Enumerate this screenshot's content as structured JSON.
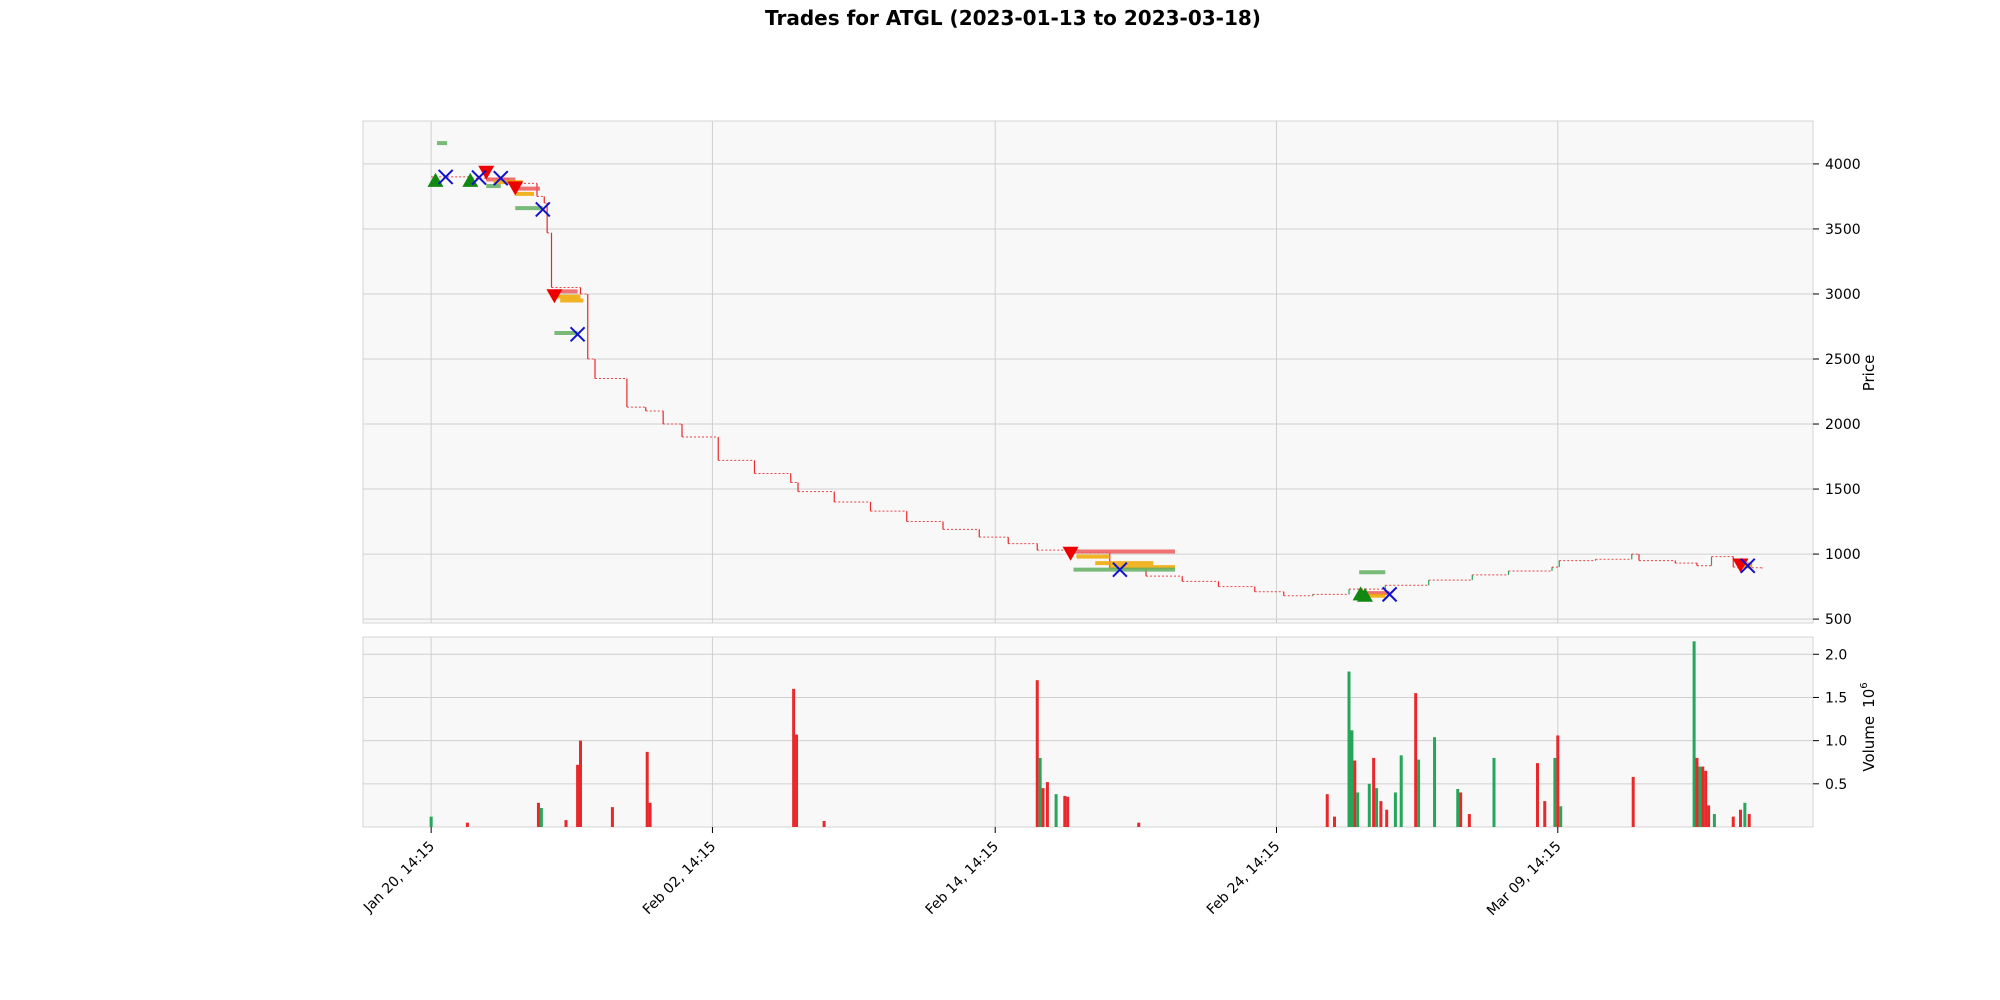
{
  "chart_data": {
    "type": "candlestick",
    "title": "Trades for ATGL (2023-01-13 to 2023-03-18)",
    "price_panel": {
      "ylabel": "Price",
      "y_ticks": [
        500,
        1000,
        1500,
        2000,
        2500,
        3000,
        3500,
        4000
      ],
      "ylim": [
        470,
        4330
      ],
      "grid": true,
      "background": "#f8f8f8"
    },
    "volume_panel": {
      "ylabel": "Volume",
      "exponent_label": "10",
      "exponent_power": "6",
      "y_ticks": [
        "0.5",
        "1.0",
        "1.5",
        "2.0"
      ],
      "y_tick_values": [
        0.5,
        1.0,
        1.5,
        2.0
      ],
      "ylim": [
        0,
        2.2
      ],
      "grid": true
    },
    "x_axis": {
      "tick_labels": [
        "Jan 20, 14:15",
        "Feb 02, 14:15",
        "Feb 14, 14:15",
        "Feb 24, 14:15",
        "Mar 09, 14:15"
      ],
      "tick_positions": [
        0.047,
        0.241,
        0.436,
        0.63,
        0.824
      ]
    },
    "colors": {
      "up": "#26a65b",
      "down": "#e8282b",
      "buy_marker": "#118811",
      "sell_marker": "#ee0000",
      "exit_marker": "#1111cc",
      "entry_bar": "#63b063",
      "tp_bar": "#ef5a5a",
      "sl_bar": "#f0a800"
    },
    "price_path": [
      [
        0.047,
        3900
      ],
      [
        0.075,
        3890
      ],
      [
        0.1,
        3850
      ],
      [
        0.12,
        3750
      ],
      [
        0.125,
        3700
      ],
      [
        0.127,
        3470
      ],
      [
        0.13,
        3050
      ],
      [
        0.15,
        3000
      ],
      [
        0.155,
        2500
      ],
      [
        0.16,
        2350
      ],
      [
        0.182,
        2130
      ],
      [
        0.195,
        2100
      ],
      [
        0.207,
        2000
      ],
      [
        0.22,
        1900
      ],
      [
        0.245,
        1720
      ],
      [
        0.27,
        1620
      ],
      [
        0.295,
        1550
      ],
      [
        0.3,
        1480
      ],
      [
        0.325,
        1400
      ],
      [
        0.35,
        1330
      ],
      [
        0.375,
        1250
      ],
      [
        0.4,
        1190
      ],
      [
        0.425,
        1130
      ],
      [
        0.445,
        1080
      ],
      [
        0.465,
        1030
      ],
      [
        0.49,
        1010
      ],
      [
        0.515,
        890
      ],
      [
        0.54,
        830
      ],
      [
        0.565,
        790
      ],
      [
        0.59,
        750
      ],
      [
        0.615,
        710
      ],
      [
        0.635,
        680
      ],
      [
        0.655,
        690
      ],
      [
        0.68,
        730
      ],
      [
        0.705,
        760
      ],
      [
        0.735,
        800
      ],
      [
        0.765,
        840
      ],
      [
        0.79,
        870
      ],
      [
        0.82,
        900
      ],
      [
        0.825,
        950
      ],
      [
        0.85,
        960
      ],
      [
        0.875,
        1000
      ],
      [
        0.88,
        950
      ],
      [
        0.905,
        930
      ],
      [
        0.92,
        910
      ],
      [
        0.93,
        980
      ],
      [
        0.945,
        900
      ],
      [
        0.955,
        895
      ],
      [
        0.965,
        890
      ]
    ],
    "buy_markers": [
      [
        0.05,
        3870
      ],
      [
        0.074,
        3870
      ],
      [
        0.688,
        690
      ],
      [
        0.691,
        680
      ]
    ],
    "sell_markers": [
      [
        0.085,
        3940
      ],
      [
        0.105,
        3820
      ],
      [
        0.132,
        2990
      ],
      [
        0.488,
        1010
      ],
      [
        0.95,
        920
      ]
    ],
    "exit_markers": [
      [
        0.057,
        3900
      ],
      [
        0.08,
        3895
      ],
      [
        0.095,
        3890
      ],
      [
        0.124,
        3650
      ],
      [
        0.148,
        2690
      ],
      [
        0.522,
        880
      ],
      [
        0.708,
        690
      ],
      [
        0.955,
        910
      ]
    ],
    "trade_bars": [
      {
        "kind": "entry",
        "x0": 0.051,
        "x1": 0.058,
        "y": 4160
      },
      {
        "kind": "entry",
        "x0": 0.085,
        "x1": 0.095,
        "y": 3830
      },
      {
        "kind": "tp",
        "x0": 0.085,
        "x1": 0.105,
        "y": 3880
      },
      {
        "kind": "sl",
        "x0": 0.09,
        "x1": 0.11,
        "y": 3860
      },
      {
        "kind": "tp",
        "x0": 0.105,
        "x1": 0.122,
        "y": 3810
      },
      {
        "kind": "sl",
        "x0": 0.105,
        "x1": 0.118,
        "y": 3770
      },
      {
        "kind": "entry",
        "x0": 0.105,
        "x1": 0.124,
        "y": 3660
      },
      {
        "kind": "tp",
        "x0": 0.132,
        "x1": 0.148,
        "y": 3020
      },
      {
        "kind": "sl",
        "x0": 0.134,
        "x1": 0.15,
        "y": 2980
      },
      {
        "kind": "sl",
        "x0": 0.136,
        "x1": 0.152,
        "y": 2950
      },
      {
        "kind": "entry",
        "x0": 0.132,
        "x1": 0.148,
        "y": 2700
      },
      {
        "kind": "tp",
        "x0": 0.49,
        "x1": 0.56,
        "y": 1020
      },
      {
        "kind": "sl",
        "x0": 0.492,
        "x1": 0.515,
        "y": 980
      },
      {
        "kind": "sl",
        "x0": 0.505,
        "x1": 0.545,
        "y": 930
      },
      {
        "kind": "sl",
        "x0": 0.515,
        "x1": 0.56,
        "y": 900
      },
      {
        "kind": "entry",
        "x0": 0.49,
        "x1": 0.56,
        "y": 880
      },
      {
        "kind": "entry",
        "x0": 0.687,
        "x1": 0.705,
        "y": 860
      },
      {
        "kind": "tp",
        "x0": 0.687,
        "x1": 0.708,
        "y": 700
      },
      {
        "kind": "sl",
        "x0": 0.687,
        "x1": 0.705,
        "y": 680
      },
      {
        "kind": "tp",
        "x0": 0.948,
        "x1": 0.958,
        "y": 920
      },
      {
        "kind": "sl",
        "x0": 0.948,
        "x1": 0.958,
        "y": 905
      }
    ],
    "volume_spikes": [
      {
        "x": 0.047,
        "v": 0.12,
        "up": true
      },
      {
        "x": 0.072,
        "v": 0.05,
        "up": false
      },
      {
        "x": 0.121,
        "v": 0.28,
        "up": false
      },
      {
        "x": 0.123,
        "v": 0.22,
        "up": true
      },
      {
        "x": 0.14,
        "v": 0.08,
        "up": false
      },
      {
        "x": 0.148,
        "v": 0.72,
        "up": false
      },
      {
        "x": 0.15,
        "v": 1.0,
        "up": false
      },
      {
        "x": 0.172,
        "v": 0.23,
        "up": false
      },
      {
        "x": 0.196,
        "v": 0.87,
        "up": false
      },
      {
        "x": 0.198,
        "v": 0.28,
        "up": false
      },
      {
        "x": 0.297,
        "v": 1.6,
        "up": false
      },
      {
        "x": 0.299,
        "v": 1.07,
        "up": false
      },
      {
        "x": 0.318,
        "v": 0.07,
        "up": false
      },
      {
        "x": 0.465,
        "v": 1.7,
        "up": false
      },
      {
        "x": 0.467,
        "v": 0.8,
        "up": true
      },
      {
        "x": 0.469,
        "v": 0.45,
        "up": false
      },
      {
        "x": 0.472,
        "v": 0.52,
        "up": false
      },
      {
        "x": 0.478,
        "v": 0.38,
        "up": true
      },
      {
        "x": 0.484,
        "v": 0.36,
        "up": false
      },
      {
        "x": 0.486,
        "v": 0.35,
        "up": false
      },
      {
        "x": 0.535,
        "v": 0.05,
        "up": false
      },
      {
        "x": 0.665,
        "v": 0.38,
        "up": false
      },
      {
        "x": 0.67,
        "v": 0.12,
        "up": false
      },
      {
        "x": 0.68,
        "v": 1.8,
        "up": true
      },
      {
        "x": 0.682,
        "v": 1.12,
        "up": true
      },
      {
        "x": 0.684,
        "v": 0.77,
        "up": false
      },
      {
        "x": 0.686,
        "v": 0.4,
        "up": true
      },
      {
        "x": 0.694,
        "v": 0.5,
        "up": true
      },
      {
        "x": 0.697,
        "v": 0.8,
        "up": false
      },
      {
        "x": 0.699,
        "v": 0.45,
        "up": true
      },
      {
        "x": 0.702,
        "v": 0.3,
        "up": false
      },
      {
        "x": 0.706,
        "v": 0.2,
        "up": false
      },
      {
        "x": 0.712,
        "v": 0.4,
        "up": true
      },
      {
        "x": 0.716,
        "v": 0.83,
        "up": true
      },
      {
        "x": 0.726,
        "v": 1.55,
        "up": false
      },
      {
        "x": 0.728,
        "v": 0.78,
        "up": true
      },
      {
        "x": 0.739,
        "v": 1.04,
        "up": true
      },
      {
        "x": 0.755,
        "v": 0.44,
        "up": true
      },
      {
        "x": 0.757,
        "v": 0.4,
        "up": false
      },
      {
        "x": 0.763,
        "v": 0.15,
        "up": false
      },
      {
        "x": 0.78,
        "v": 0.8,
        "up": true
      },
      {
        "x": 0.81,
        "v": 0.74,
        "up": false
      },
      {
        "x": 0.815,
        "v": 0.3,
        "up": false
      },
      {
        "x": 0.822,
        "v": 0.8,
        "up": true
      },
      {
        "x": 0.824,
        "v": 1.06,
        "up": false
      },
      {
        "x": 0.826,
        "v": 0.24,
        "up": true
      },
      {
        "x": 0.876,
        "v": 0.58,
        "up": false
      },
      {
        "x": 0.918,
        "v": 2.15,
        "up": true
      },
      {
        "x": 0.92,
        "v": 0.8,
        "up": false
      },
      {
        "x": 0.922,
        "v": 0.7,
        "up": true
      },
      {
        "x": 0.924,
        "v": 0.7,
        "up": false
      },
      {
        "x": 0.926,
        "v": 0.65,
        "up": false
      },
      {
        "x": 0.928,
        "v": 0.25,
        "up": false
      },
      {
        "x": 0.932,
        "v": 0.15,
        "up": true
      },
      {
        "x": 0.945,
        "v": 0.12,
        "up": false
      },
      {
        "x": 0.95,
        "v": 0.2,
        "up": false
      },
      {
        "x": 0.953,
        "v": 0.28,
        "up": true
      },
      {
        "x": 0.956,
        "v": 0.15,
        "up": false
      }
    ]
  }
}
